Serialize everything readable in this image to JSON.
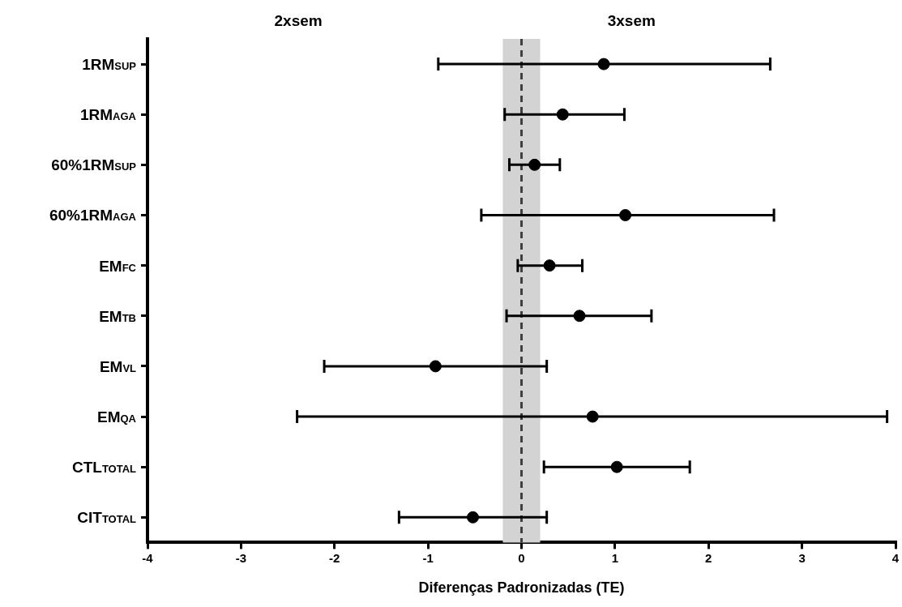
{
  "chart_data": {
    "type": "scatter",
    "orientation": "horizontal",
    "categories": [
      "1RM$_{SUP}$",
      "1RM$_{AGA}$",
      "60%1RM$_{SUP}$",
      "60%1RM$_{AGA}$",
      "EM$_{FC}$",
      "EM$_{TB}$",
      "EM$_{VL}$",
      "EM$_{QA}$",
      "CTL$_{TOTAL}$",
      "CIT$_{TOTAL}$"
    ],
    "series": [
      {
        "color": "#000000",
        "values": [
          0.88,
          0.44,
          0.14,
          1.11,
          0.3,
          0.62,
          -0.92,
          0.76,
          1.02,
          -0.52
        ],
        "errors": [
          [
            -0.89,
            2.66
          ],
          [
            -0.18,
            1.1
          ],
          [
            -0.13,
            0.41
          ],
          [
            -0.43,
            2.7
          ],
          [
            -0.04,
            0.65
          ],
          [
            -0.16,
            1.39
          ],
          [
            -2.11,
            0.27
          ],
          [
            -2.4,
            3.91
          ],
          [
            0.24,
            1.8
          ],
          [
            -1.31,
            0.27
          ]
        ]
      }
    ],
    "xlim": [
      -4,
      4
    ],
    "xticks": [
      -4,
      -3,
      -2,
      -1,
      0,
      1,
      2,
      3,
      4
    ],
    "xlabel": "Diferenças Padronizadas (TE)",
    "annotations": [
      "2xsem",
      "3xsem"
    ],
    "ref_lines": [
      {
        "axis": "x",
        "value": 0,
        "color": "#404040",
        "line_style": "dashed"
      }
    ],
    "bands": [
      {
        "axis": "x",
        "from": -0.2,
        "to": 0.2,
        "color": "#d3d3d3"
      }
    ],
    "marker": "circle",
    "grid": false,
    "legend": false
  }
}
